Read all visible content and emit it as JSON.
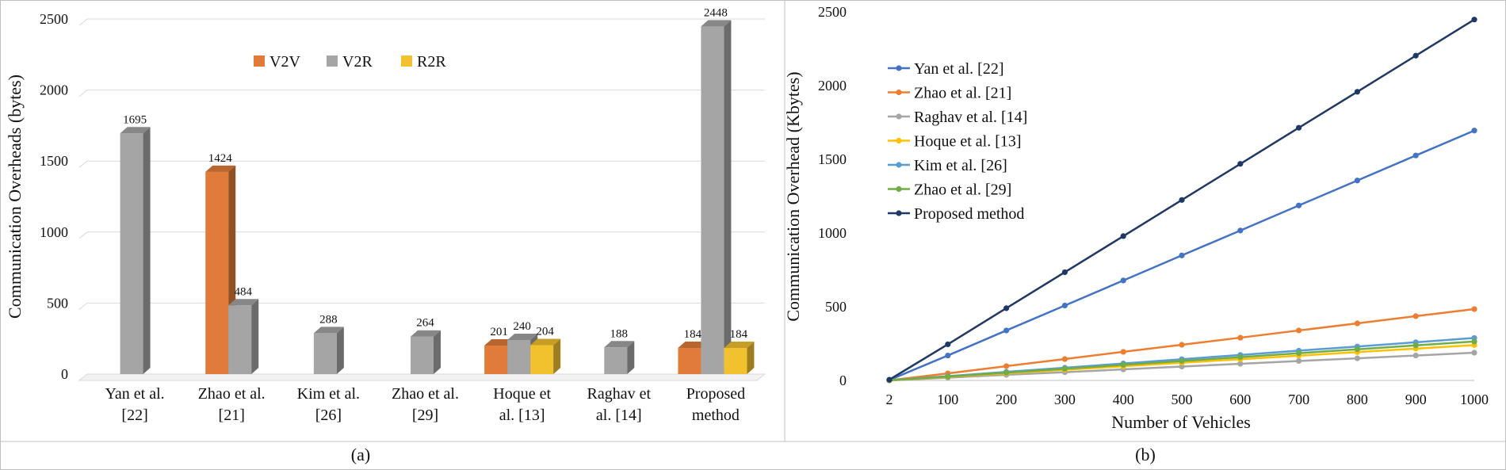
{
  "colors": {
    "v2v": "#E07B39",
    "v2r": "#A5A5A5",
    "r2r": "#F2C12E",
    "grid": "#D9D9D9",
    "frame": "#BFBFBF"
  },
  "chart_data": [
    {
      "type": "bar",
      "panel_label": "(a)",
      "ylabel": "Communication Overheads (bytes)",
      "xlabel": "",
      "ylim": [
        0,
        2500
      ],
      "yticks": [
        0,
        500,
        1000,
        1500,
        2000,
        2500
      ],
      "grid": true,
      "legend_position": "top-center",
      "three_d": true,
      "categories": [
        [
          "Yan et al.",
          "[22]"
        ],
        [
          "Zhao et al.",
          "[21]"
        ],
        [
          "Kim et al.",
          "[26]"
        ],
        [
          "Zhao et al.",
          "[29]"
        ],
        [
          "Hoque et",
          "al. [13]"
        ],
        [
          "Raghav et",
          "al. [14]"
        ],
        [
          "Proposed",
          "method"
        ]
      ],
      "series": [
        {
          "name": "V2V",
          "color": "#E07B39",
          "values": [
            null,
            1424,
            null,
            null,
            201,
            null,
            184
          ]
        },
        {
          "name": "V2R",
          "color": "#A5A5A5",
          "values": [
            1695,
            484,
            288,
            264,
            240,
            188,
            2448
          ]
        },
        {
          "name": "R2R",
          "color": "#F2C12E",
          "values": [
            null,
            null,
            null,
            null,
            204,
            null,
            184
          ]
        }
      ]
    },
    {
      "type": "line",
      "panel_label": "(b)",
      "ylabel": "Communication Overhead (Kbytes)",
      "xlabel": "Number of Vehicles",
      "ylim": [
        0,
        2500
      ],
      "yticks": [
        0,
        500,
        1000,
        1500,
        2000,
        2500
      ],
      "grid": false,
      "legend_position": "top-left",
      "x": [
        2,
        100,
        200,
        300,
        400,
        500,
        600,
        700,
        800,
        900,
        1000
      ],
      "x_tick_labels": [
        "2",
        "100",
        "200",
        "300",
        "400",
        "500",
        "600",
        "700",
        "800",
        "900",
        "1000"
      ],
      "series": [
        {
          "name": "Yan et al. [22]",
          "color": "#4472C4",
          "values": [
            3,
            169,
            339,
            508,
            678,
            848,
            1017,
            1187,
            1356,
            1526,
            1695
          ]
        },
        {
          "name": "Zhao et al. [21]",
          "color": "#ED7D31",
          "values": [
            1,
            48,
            97,
            145,
            194,
            242,
            290,
            339,
            387,
            436,
            484
          ]
        },
        {
          "name": "Raghav et al. [14]",
          "color": "#A5A5A5",
          "values": [
            0,
            19,
            38,
            56,
            75,
            94,
            113,
            132,
            150,
            169,
            188
          ]
        },
        {
          "name": "Hoque et al. [13]",
          "color": "#FFC000",
          "values": [
            0,
            24,
            48,
            72,
            96,
            120,
            144,
            168,
            192,
            216,
            240
          ]
        },
        {
          "name": "Kim et al. [26]",
          "color": "#5B9BD5",
          "values": [
            1,
            29,
            58,
            86,
            115,
            144,
            173,
            202,
            230,
            259,
            288
          ]
        },
        {
          "name": "Zhao et al. [29]",
          "color": "#70AD47",
          "values": [
            1,
            26,
            53,
            79,
            106,
            132,
            158,
            185,
            211,
            238,
            264
          ]
        },
        {
          "name": "Proposed method",
          "color": "#203864",
          "values": [
            5,
            245,
            490,
            734,
            979,
            1224,
            1469,
            1714,
            1958,
            2203,
            2448
          ]
        }
      ]
    }
  ]
}
